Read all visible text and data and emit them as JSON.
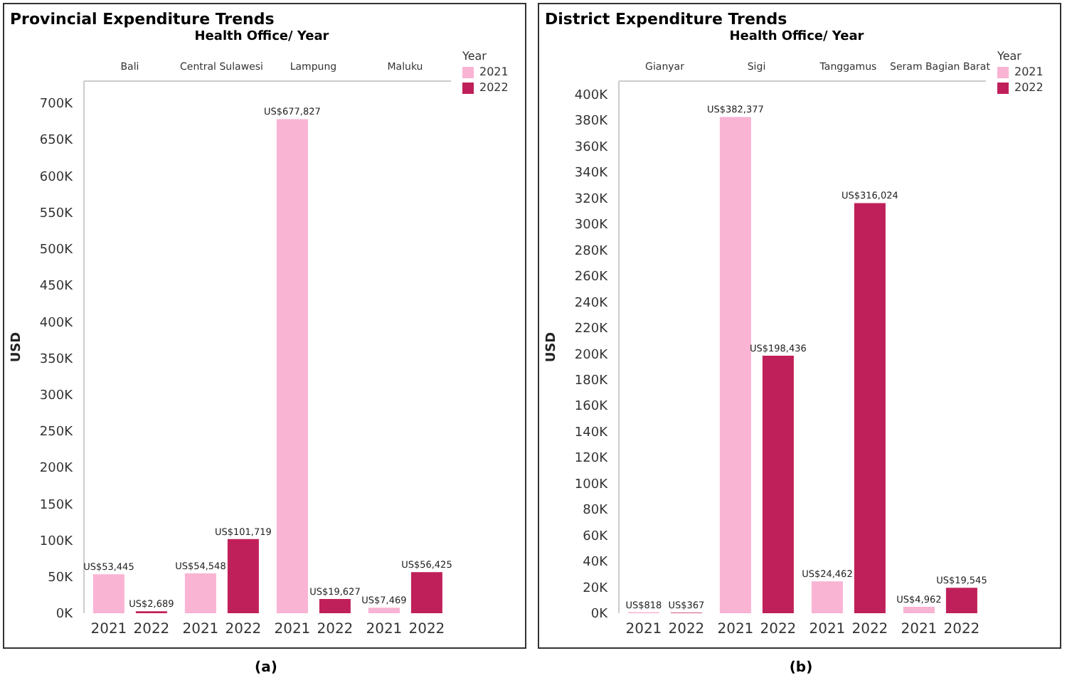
{
  "chart_data": [
    {
      "type": "bar",
      "title": "Provincial Expenditure Trends",
      "xlabel": "Health Office/ Year",
      "ylabel": "USD",
      "legend_title": "Year",
      "legend": "top right",
      "categories": [
        "Bali",
        "Central Sulawesi",
        "Lampung",
        "Maluku"
      ],
      "series": [
        {
          "name": "2021",
          "color": "#f9b3d3",
          "values": [
            53445,
            54548,
            677827,
            7469
          ],
          "value_labels": [
            "US$53,445",
            "US$54,548",
            "US$677,827",
            "US$7,469"
          ]
        },
        {
          "name": "2022",
          "color": "#c0205a",
          "values": [
            2689,
            101719,
            19627,
            56425
          ],
          "value_labels": [
            "US$2,689",
            "US$101,719",
            "US$19,627",
            "US$56,425"
          ]
        }
      ],
      "ylim": [
        0,
        730000
      ],
      "yticks": [
        {
          "value": 0,
          "label": "0K"
        },
        {
          "value": 50000,
          "label": "50K"
        },
        {
          "value": 100000,
          "label": "100K"
        },
        {
          "value": 150000,
          "label": "150K"
        },
        {
          "value": 200000,
          "label": "200K"
        },
        {
          "value": 250000,
          "label": "250K"
        },
        {
          "value": 300000,
          "label": "300K"
        },
        {
          "value": 350000,
          "label": "350K"
        },
        {
          "value": 400000,
          "label": "400K"
        },
        {
          "value": 450000,
          "label": "450K"
        },
        {
          "value": 500000,
          "label": "500K"
        },
        {
          "value": 550000,
          "label": "550K"
        },
        {
          "value": 600000,
          "label": "600K"
        },
        {
          "value": 650000,
          "label": "650K"
        },
        {
          "value": 700000,
          "label": "700K"
        }
      ],
      "annotations": [
        "(a)"
      ]
    },
    {
      "type": "bar",
      "title": "District Expenditure Trends",
      "xlabel": "Health Office/ Year",
      "ylabel": "USD",
      "legend_title": "Year",
      "legend": "top right",
      "categories": [
        "Gianyar",
        "Sigi",
        "Tanggamus",
        "Seram Bagian Barat"
      ],
      "series": [
        {
          "name": "2021",
          "color": "#f9b3d3",
          "values": [
            818,
            382377,
            24462,
            4962
          ],
          "value_labels": [
            "US$818",
            "US$382,377",
            "US$24,462",
            "US$4,962"
          ]
        },
        {
          "name": "2022",
          "color": "#c0205a",
          "values": [
            367,
            198436,
            316024,
            19545
          ],
          "value_labels": [
            "US$367",
            "US$198,436",
            "US$316,024",
            "US$19,545"
          ]
        }
      ],
      "ylim": [
        0,
        410000
      ],
      "yticks": [
        {
          "value": 0,
          "label": "0K"
        },
        {
          "value": 20000,
          "label": "20K"
        },
        {
          "value": 40000,
          "label": "40K"
        },
        {
          "value": 60000,
          "label": "60K"
        },
        {
          "value": 80000,
          "label": "80K"
        },
        {
          "value": 100000,
          "label": "100K"
        },
        {
          "value": 120000,
          "label": "120K"
        },
        {
          "value": 140000,
          "label": "140K"
        },
        {
          "value": 160000,
          "label": "160K"
        },
        {
          "value": 180000,
          "label": "180K"
        },
        {
          "value": 200000,
          "label": "200K"
        },
        {
          "value": 220000,
          "label": "220K"
        },
        {
          "value": 240000,
          "label": "240K"
        },
        {
          "value": 260000,
          "label": "260K"
        },
        {
          "value": 280000,
          "label": "280K"
        },
        {
          "value": 300000,
          "label": "300K"
        },
        {
          "value": 320000,
          "label": "320K"
        },
        {
          "value": 340000,
          "label": "340K"
        },
        {
          "value": 360000,
          "label": "360K"
        },
        {
          "value": 380000,
          "label": "380K"
        },
        {
          "value": 400000,
          "label": "400K"
        }
      ],
      "annotations": [
        "(b)"
      ]
    }
  ]
}
